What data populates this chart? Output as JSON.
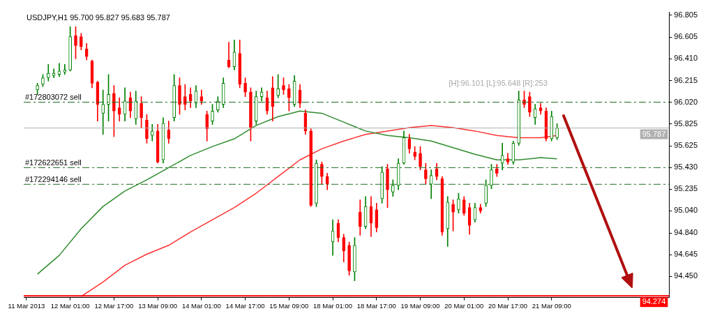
{
  "chart_data": {
    "type": "candlestick",
    "title": "USDJPY,H1 95.700 95.827 95.683 95.787",
    "categories": [
      "11 Mar 2013",
      null,
      null,
      null,
      null,
      null,
      null,
      null,
      "12 Mar 01:00",
      null,
      null,
      null,
      null,
      null,
      null,
      null,
      "12 Mar 17:00",
      null,
      null,
      null,
      null,
      null,
      null,
      null,
      "13 Mar 09:00",
      null,
      null,
      null,
      null,
      null,
      null,
      null,
      "14 Mar 01:00",
      null,
      null,
      null,
      null,
      null,
      null,
      null,
      "14 Mar 17:00",
      null,
      null,
      null,
      null,
      null,
      null,
      null,
      "15 Mar 09:00",
      null,
      null,
      null,
      null,
      null,
      null,
      null,
      "18 Mar 01:00",
      null,
      null,
      null,
      null,
      null,
      null,
      null,
      "18 Mar 17:00",
      null,
      null,
      null,
      null,
      null,
      null,
      null,
      "19 Mar 09:00",
      null,
      null,
      null,
      null,
      null,
      null,
      null,
      "20 Mar 01:00",
      null,
      null,
      null,
      null,
      null,
      null,
      null,
      "20 Mar 17:00",
      null,
      null,
      null,
      null,
      null,
      null,
      null,
      "21 Mar 09:00",
      null,
      null,
      null,
      null,
      null,
      null,
      null,
      null,
      null,
      null,
      null,
      null,
      null,
      null,
      null,
      null,
      null,
      null,
      null,
      null,
      null
    ],
    "ohlc": [
      null,
      null,
      [
        96.13,
        96.19,
        96.09,
        96.17
      ],
      [
        96.18,
        96.27,
        96.16,
        96.24
      ],
      [
        96.24,
        96.36,
        96.21,
        96.28
      ],
      [
        96.26,
        96.32,
        96.24,
        96.28
      ],
      [
        96.27,
        96.37,
        96.25,
        96.3
      ],
      [
        96.29,
        96.36,
        96.27,
        96.31
      ],
      [
        96.31,
        96.7,
        96.3,
        96.61
      ],
      [
        96.62,
        96.7,
        96.41,
        96.53
      ],
      [
        96.61,
        96.64,
        96.49,
        96.52
      ],
      [
        96.5,
        96.55,
        96.4,
        96.43
      ],
      [
        96.39,
        96.4,
        96.15,
        96.19
      ],
      [
        96.2,
        96.21,
        95.85,
        96.0
      ],
      [
        95.92,
        96.13,
        95.73,
        96.0
      ],
      [
        96.0,
        96.27,
        95.85,
        96.09
      ],
      [
        96.1,
        96.17,
        95.71,
        95.94
      ],
      [
        95.97,
        96.06,
        95.85,
        95.91
      ],
      [
        95.91,
        96.15,
        95.85,
        96.03
      ],
      [
        96.06,
        96.11,
        95.88,
        95.94
      ],
      [
        95.87,
        96.12,
        95.82,
        96.03
      ],
      [
        96.01,
        96.07,
        95.79,
        95.88
      ],
      [
        95.86,
        95.91,
        95.65,
        95.69
      ],
      [
        95.72,
        95.82,
        95.67,
        95.76
      ],
      [
        95.76,
        95.82,
        95.47,
        95.48
      ],
      [
        95.5,
        95.88,
        95.47,
        95.83
      ],
      [
        95.77,
        95.85,
        95.65,
        95.69
      ],
      [
        95.88,
        96.27,
        95.85,
        96.17
      ],
      [
        96.17,
        96.24,
        95.91,
        96.0
      ],
      [
        96.07,
        96.18,
        95.95,
        96.0
      ],
      [
        96.09,
        96.15,
        95.97,
        96.03
      ],
      [
        96.01,
        96.17,
        95.97,
        96.12
      ],
      [
        96.07,
        96.13,
        96.0,
        96.03
      ],
      [
        95.91,
        95.94,
        95.67,
        95.78
      ],
      [
        95.85,
        96.0,
        95.82,
        95.94
      ],
      [
        95.95,
        96.07,
        95.93,
        96.03
      ],
      [
        96.0,
        96.24,
        95.97,
        96.19
      ],
      [
        96.4,
        96.56,
        96.33,
        96.34
      ],
      [
        96.34,
        96.58,
        96.31,
        96.47
      ],
      [
        96.46,
        96.58,
        96.15,
        96.18
      ],
      [
        96.19,
        96.24,
        96.07,
        96.11
      ],
      [
        96.11,
        96.15,
        95.67,
        95.79
      ],
      [
        95.85,
        96.12,
        95.82,
        96.07
      ],
      [
        96.07,
        96.15,
        96.03,
        96.11
      ],
      [
        96.06,
        96.12,
        95.91,
        95.94
      ],
      [
        96.15,
        96.25,
        95.85,
        95.98
      ],
      [
        96.08,
        96.27,
        96.06,
        96.14
      ],
      [
        96.17,
        96.24,
        96.09,
        96.13
      ],
      [
        96.14,
        96.18,
        95.94,
        96.06
      ],
      [
        96.0,
        96.26,
        95.98,
        96.21
      ],
      [
        96.13,
        96.18,
        95.97,
        96.01
      ],
      [
        95.92,
        95.95,
        95.73,
        95.76
      ],
      [
        95.76,
        95.78,
        95.08,
        95.09
      ],
      [
        95.11,
        95.5,
        95.08,
        95.47
      ],
      [
        95.46,
        95.48,
        95.28,
        95.35
      ],
      [
        95.35,
        95.38,
        95.23,
        95.28
      ],
      [
        94.76,
        94.96,
        94.64,
        94.86
      ],
      [
        94.93,
        94.96,
        94.76,
        94.8
      ],
      [
        94.8,
        94.83,
        94.58,
        94.68
      ],
      [
        94.73,
        94.76,
        94.46,
        94.5
      ],
      [
        94.49,
        94.8,
        94.41,
        94.73
      ],
      [
        95.03,
        95.14,
        94.82,
        94.9
      ],
      [
        94.9,
        95.17,
        94.88,
        95.08
      ],
      [
        95.08,
        95.17,
        94.81,
        94.93
      ],
      [
        95.05,
        95.11,
        94.85,
        94.89
      ],
      [
        95.15,
        95.44,
        95.11,
        95.39
      ],
      [
        95.42,
        95.46,
        95.07,
        95.23
      ],
      [
        95.21,
        95.32,
        95.17,
        95.27
      ],
      [
        95.27,
        95.51,
        95.23,
        95.47
      ],
      [
        95.47,
        95.76,
        95.46,
        95.7
      ],
      [
        95.69,
        95.73,
        95.56,
        95.6
      ],
      [
        95.57,
        95.62,
        95.5,
        95.53
      ],
      [
        95.56,
        95.62,
        95.41,
        95.44
      ],
      [
        95.41,
        95.47,
        95.28,
        95.33
      ],
      [
        95.28,
        95.41,
        95.15,
        95.36
      ],
      [
        95.42,
        95.47,
        95.32,
        95.35
      ],
      [
        95.33,
        95.35,
        94.82,
        94.85
      ],
      [
        94.88,
        95.17,
        94.72,
        95.12
      ],
      [
        95.1,
        95.14,
        94.86,
        95.03
      ],
      [
        95.05,
        95.2,
        95.02,
        95.15
      ],
      [
        95.14,
        95.17,
        95.0,
        95.02
      ],
      [
        95.07,
        95.11,
        94.83,
        94.91
      ],
      [
        94.96,
        95.11,
        94.94,
        95.07
      ],
      [
        95.07,
        95.1,
        95.02,
        95.04
      ],
      [
        95.11,
        95.32,
        95.08,
        95.27
      ],
      [
        95.27,
        95.46,
        95.24,
        95.41
      ],
      [
        95.42,
        95.46,
        95.35,
        95.38
      ],
      [
        95.47,
        95.65,
        95.41,
        95.54
      ],
      [
        95.51,
        95.56,
        95.46,
        95.48
      ],
      [
        95.48,
        95.67,
        95.46,
        95.65
      ],
      [
        95.65,
        96.12,
        95.63,
        96.04
      ],
      [
        96.04,
        96.12,
        95.97,
        96.0
      ],
      [
        96.07,
        96.11,
        95.89,
        95.93
      ],
      [
        95.88,
        96.0,
        95.82,
        95.96
      ],
      [
        95.97,
        96.01,
        95.91,
        95.94
      ],
      [
        95.94,
        95.97,
        95.67,
        95.69
      ],
      [
        95.69,
        95.94,
        95.67,
        95.89
      ],
      [
        95.7,
        95.827,
        95.683,
        95.787
      ],
      null,
      null,
      null,
      null,
      null,
      null,
      null,
      null,
      null,
      null,
      null,
      null,
      null,
      null,
      null,
      null,
      null,
      null,
      null,
      null
    ],
    "series": [
      {
        "type": "line",
        "color": "#2e8b2e",
        "values": [
          null,
          null,
          94.47,
          null,
          null,
          null,
          94.64,
          null,
          null,
          null,
          94.88,
          null,
          null,
          null,
          95.08,
          null,
          null,
          null,
          95.22,
          null,
          null,
          null,
          95.32,
          null,
          null,
          null,
          95.43,
          null,
          null,
          null,
          95.54,
          null,
          null,
          null,
          95.62,
          null,
          null,
          null,
          95.69,
          null,
          null,
          null,
          95.81,
          null,
          null,
          null,
          95.89,
          null,
          null,
          null,
          95.94,
          null,
          null,
          null,
          95.92,
          null,
          null,
          null,
          95.84,
          null,
          null,
          null,
          95.76,
          null,
          null,
          null,
          95.72,
          null,
          null,
          null,
          95.7,
          null,
          null,
          null,
          95.67,
          null,
          null,
          null,
          95.61,
          null,
          null,
          null,
          95.55,
          null,
          null,
          null,
          95.5,
          null,
          null,
          null,
          95.5,
          null,
          null,
          null,
          95.52,
          null,
          null,
          95.51,
          null,
          null,
          null,
          null,
          null,
          null,
          null,
          null,
          null,
          null,
          null,
          null,
          null,
          null,
          null,
          null,
          null,
          null,
          null,
          null
        ]
      },
      {
        "type": "line",
        "color": "#ff3030",
        "values": [
          null,
          null,
          null,
          null,
          null,
          null,
          null,
          null,
          null,
          null,
          94.27,
          null,
          null,
          null,
          94.4,
          null,
          null,
          null,
          94.55,
          null,
          null,
          null,
          94.65,
          null,
          null,
          null,
          94.73,
          null,
          null,
          null,
          94.85,
          null,
          null,
          null,
          94.96,
          null,
          null,
          null,
          95.07,
          null,
          null,
          null,
          95.2,
          null,
          null,
          null,
          95.35,
          null,
          null,
          null,
          95.5,
          null,
          null,
          null,
          95.6,
          null,
          null,
          null,
          95.67,
          null,
          null,
          null,
          95.73,
          null,
          null,
          null,
          95.76,
          null,
          null,
          null,
          95.79,
          null,
          null,
          null,
          95.81,
          null,
          null,
          null,
          95.79,
          null,
          null,
          null,
          95.76,
          null,
          null,
          null,
          95.72,
          null,
          null,
          null,
          95.7,
          null,
          null,
          null,
          95.7,
          null,
          null,
          95.72,
          null,
          null,
          null,
          null,
          null,
          null,
          null,
          null,
          null,
          null,
          null,
          null,
          null,
          null,
          null,
          null,
          null,
          null,
          null,
          null
        ]
      }
    ],
    "ylim": [
      94.26,
      96.83
    ],
    "yticks": [
      {
        "value": 94.45,
        "label": "94.450"
      },
      94.645,
      {
        "value": 94.84,
        "label": "94.840"
      },
      {
        "value": 95.04,
        "label": "95.040"
      },
      95.235,
      {
        "value": 95.43,
        "label": "95.430"
      },
      95.625,
      95.825,
      {
        "value": 96.02,
        "label": "96.020"
      },
      96.215,
      {
        "value": 96.41,
        "label": "96.410"
      },
      96.605,
      96.805
    ],
    "ref_lines": [
      {
        "axis": "y",
        "value": 96.02,
        "label": "#172803072 sell",
        "color": "#1e6e1e",
        "line_style": "dashed"
      },
      {
        "axis": "y",
        "value": 95.43,
        "label": "#172622651 sell",
        "color": "#1e6e1e",
        "line_style": "dashed"
      },
      {
        "axis": "y",
        "value": 95.28,
        "label": "#172294146 sell",
        "color": "#1e6e1e",
        "line_style": "dashed"
      },
      {
        "axis": "y",
        "value": 95.787,
        "label": "95.787",
        "color": "#b0b0b0",
        "line_style": "solid"
      },
      {
        "axis": "y",
        "value": 94.274,
        "label": "94.274",
        "color": "#ff0000",
        "line_style": "solid"
      }
    ],
    "annotations": [
      "[H]:96.101 [L]:95.648 [R]:253"
    ],
    "grid": false,
    "legend": false,
    "marker": "none"
  }
}
